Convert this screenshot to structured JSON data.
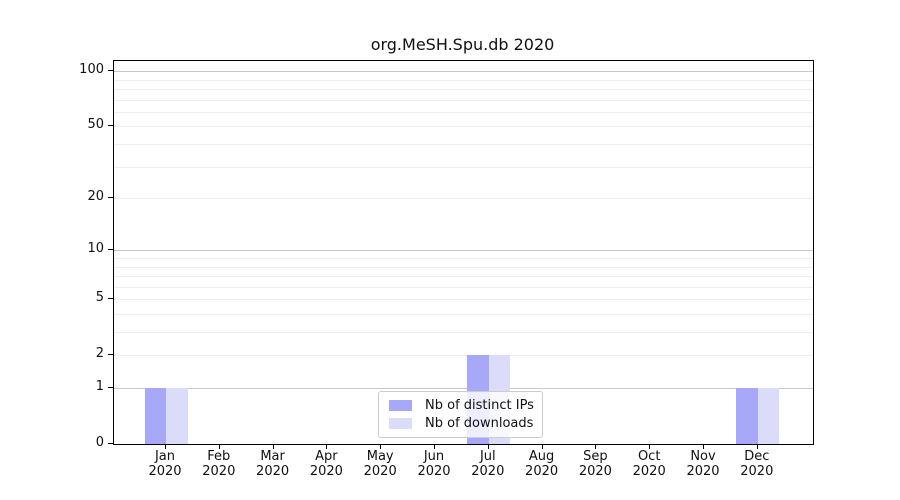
{
  "chart_data": {
    "type": "bar",
    "title": "org.MeSH.Spu.db 2020",
    "categories": [
      "Jan 2020",
      "Feb 2020",
      "Mar 2020",
      "Apr 2020",
      "May 2020",
      "Jun 2020",
      "Jul 2020",
      "Aug 2020",
      "Sep 2020",
      "Oct 2020",
      "Nov 2020",
      "Dec 2020"
    ],
    "series": [
      {
        "name": "Nb of distinct IPs",
        "color": "#a8a8f8",
        "values": [
          1,
          0,
          0,
          0,
          0,
          0,
          2,
          0,
          0,
          0,
          0,
          1
        ]
      },
      {
        "name": "Nb of downloads",
        "color": "#dbdbfa",
        "values": [
          1,
          0,
          0,
          0,
          0,
          0,
          2,
          0,
          0,
          0,
          0,
          1
        ]
      }
    ],
    "xlabel": "",
    "ylabel": "",
    "yscale": "log1p",
    "ylim": [
      0,
      113.5
    ],
    "yticks": [
      0,
      1,
      2,
      5,
      10,
      20,
      50,
      100
    ],
    "grid": {
      "major": [
        1,
        10,
        100
      ],
      "minor": [
        2,
        3,
        4,
        5,
        6,
        7,
        8,
        9,
        20,
        30,
        40,
        50,
        60,
        70,
        80,
        90
      ]
    },
    "legend": {
      "position": "lower center"
    },
    "colors": {
      "major_grid": "#c8c8c8",
      "minor_grid": "#ededed",
      "spine": "#000000",
      "text": "#111111"
    }
  }
}
